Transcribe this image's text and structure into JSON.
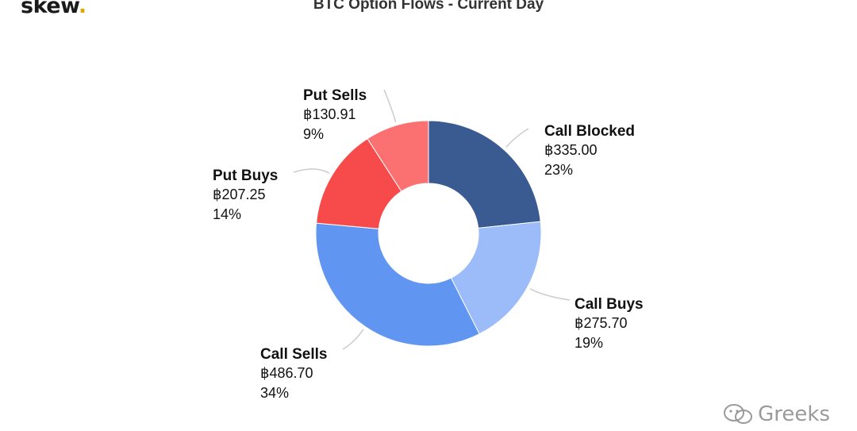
{
  "logo": {
    "text": "skew",
    "dot": "."
  },
  "watermark": {
    "text": "Greeks"
  },
  "chart_data": {
    "type": "pie",
    "title": "BTC Option Flows - Current Day",
    "donut": true,
    "currency_symbol": "฿",
    "slices": [
      {
        "name": "Call Blocked",
        "value": 335.0,
        "value_label": "฿335.00",
        "pct_label": "23%",
        "color": "#3a5a92"
      },
      {
        "name": "Call Buys",
        "value": 275.7,
        "value_label": "฿275.70",
        "pct_label": "19%",
        "color": "#9bbcf8"
      },
      {
        "name": "Call Sells",
        "value": 486.7,
        "value_label": "฿486.70",
        "pct_label": "34%",
        "color": "#6096f1"
      },
      {
        "name": "Put Buys",
        "value": 207.25,
        "value_label": "฿207.25",
        "pct_label": "14%",
        "color": "#f74a4a"
      },
      {
        "name": "Put Sells",
        "value": 130.91,
        "value_label": "฿130.91",
        "pct_label": "9%",
        "color": "#fb7172"
      }
    ]
  }
}
